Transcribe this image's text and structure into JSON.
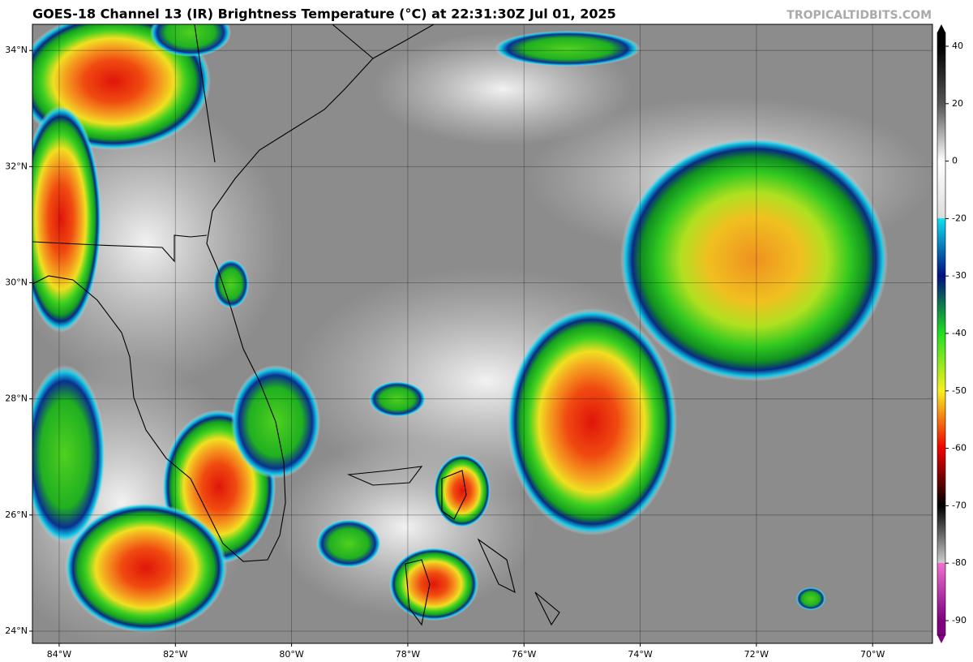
{
  "title": "GOES-18 Channel 13 (IR) Brightness Temperature (°C) at 22:31:30Z Jul 01, 2025",
  "credit": "TROPICALTIDBITS.COM",
  "map": {
    "xlim": [
      -84.46,
      -68.97
    ],
    "ylim": [
      23.79,
      34.45
    ],
    "xticks": [
      {
        "value": -84,
        "label": "84°W"
      },
      {
        "value": -82,
        "label": "82°W"
      },
      {
        "value": -80,
        "label": "80°W"
      },
      {
        "value": -78,
        "label": "78°W"
      },
      {
        "value": -76,
        "label": "76°W"
      },
      {
        "value": -74,
        "label": "74°W"
      },
      {
        "value": -72,
        "label": "72°W"
      },
      {
        "value": -70,
        "label": "70°W"
      }
    ],
    "yticks": [
      {
        "value": 24,
        "label": "24°N"
      },
      {
        "value": 26,
        "label": "26°N"
      },
      {
        "value": 28,
        "label": "28°N"
      },
      {
        "value": 30,
        "label": "30°N"
      },
      {
        "value": 32,
        "label": "32°N"
      },
      {
        "value": 34,
        "label": "34°N"
      }
    ]
  },
  "colorbar": {
    "ticks": [
      40,
      20,
      0,
      -20,
      -30,
      -40,
      -50,
      -60,
      -70,
      -80,
      -90
    ]
  }
}
